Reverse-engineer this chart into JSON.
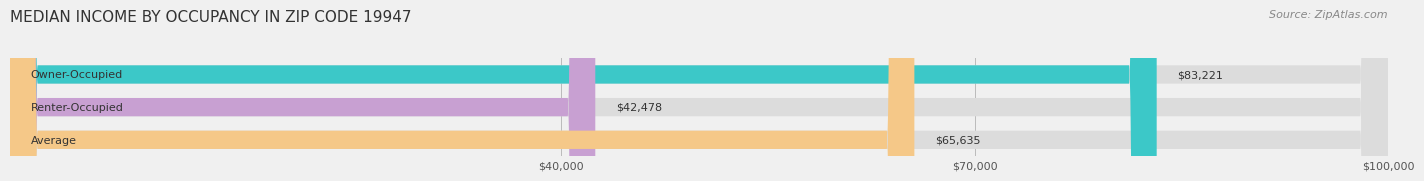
{
  "title": "MEDIAN INCOME BY OCCUPANCY IN ZIP CODE 19947",
  "source": "Source: ZipAtlas.com",
  "categories": [
    "Owner-Occupied",
    "Renter-Occupied",
    "Average"
  ],
  "values": [
    83221,
    42478,
    65635
  ],
  "labels": [
    "$83,221",
    "$42,478",
    "$65,635"
  ],
  "bar_colors": [
    "#3cc8c8",
    "#c8a0d2",
    "#f5c888"
  ],
  "bar_edge_colors": [
    "#3cc8c8",
    "#c8a0d2",
    "#f5c888"
  ],
  "background_color": "#f0f0f0",
  "bar_bg_color": "#e8e8e8",
  "xmin": 0,
  "xmax": 100000,
  "xticks": [
    40000,
    70000,
    100000
  ],
  "xticklabels": [
    "$40,000",
    "$70,000",
    "$100,000"
  ],
  "title_fontsize": 11,
  "source_fontsize": 8,
  "label_fontsize": 8,
  "bar_height": 0.55
}
